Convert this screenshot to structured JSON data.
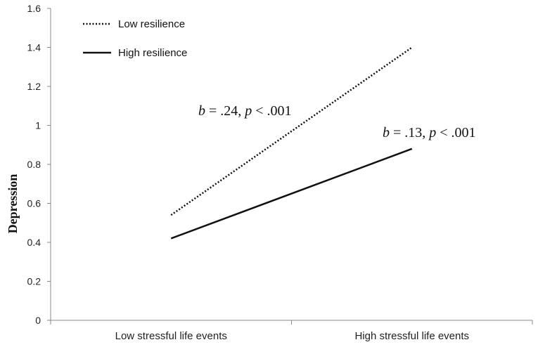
{
  "chart_data": {
    "type": "line",
    "title": "",
    "xlabel": "",
    "ylabel": "Depression",
    "ylim": [
      0,
      1.6
    ],
    "yticks": [
      "0",
      "0.2",
      "0.4",
      "0.6",
      "0.8",
      "1",
      "1.2",
      "1.4",
      "1.6"
    ],
    "categories": [
      "Low stressful life events",
      "High stressful life events"
    ],
    "series": [
      {
        "name": "Low resilience",
        "values": [
          0.54,
          1.4
        ],
        "style": "dotted",
        "color": "#111111"
      },
      {
        "name": "High resilience",
        "values": [
          0.42,
          0.88
        ],
        "style": "solid",
        "color": "#111111"
      }
    ],
    "legend": "top-left",
    "grid": false,
    "annotations": [
      {
        "series": "Low resilience",
        "b_symbol": "b",
        "b_text": " = .24, ",
        "p_symbol": "p",
        "p_text": " < .001"
      },
      {
        "series": "High resilience",
        "b_symbol": "b",
        "b_text": " = .13, ",
        "p_symbol": "p",
        "p_text": " < .001"
      }
    ]
  }
}
